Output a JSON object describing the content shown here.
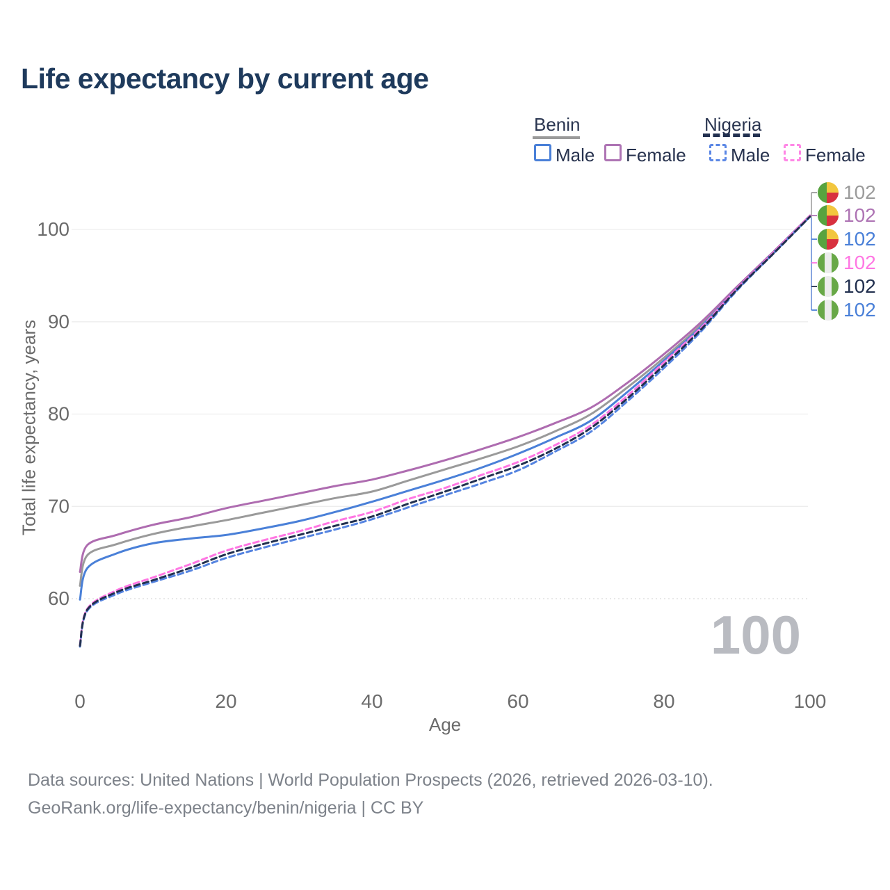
{
  "title": "Life expectancy by current age",
  "legend": {
    "groups": [
      {
        "label": "Benin",
        "line_style": "solid",
        "items": [
          {
            "label": "Male",
            "color": "#4a80d8"
          },
          {
            "label": "Female",
            "color": "#ae74b4"
          }
        ]
      },
      {
        "label": "Nigeria",
        "line_style": "dashed",
        "items": [
          {
            "label": "Male",
            "color": "#5b87e5"
          },
          {
            "label": "Female",
            "color": "#ff87e6"
          }
        ]
      }
    ]
  },
  "chart_data": {
    "type": "line",
    "title": "Life expectancy by current age",
    "xlabel": "Age",
    "ylabel": "Total life expectancy, years",
    "x_ticks": [
      0,
      20,
      40,
      60,
      80,
      100
    ],
    "y_ticks": [
      60,
      70,
      80,
      90,
      100
    ],
    "xlim": [
      0,
      100
    ],
    "ylim": [
      54,
      103
    ],
    "grid": "horizontal",
    "ages": [
      0,
      1,
      5,
      10,
      15,
      20,
      25,
      30,
      35,
      40,
      45,
      50,
      55,
      60,
      65,
      70,
      75,
      80,
      85,
      90,
      95,
      100
    ],
    "series": [
      {
        "name": "Benin average",
        "color": "#9a9a9a",
        "dash": null,
        "values": [
          61.4,
          64.7,
          65.9,
          67.0,
          67.8,
          68.5,
          69.3,
          70.1,
          70.9,
          71.6,
          72.8,
          74.0,
          75.2,
          76.5,
          78.1,
          80.0,
          82.9,
          86.1,
          89.6,
          93.7,
          97.5,
          101.5
        ]
      },
      {
        "name": "Benin female",
        "color": "#ae6cb0",
        "dash": null,
        "values": [
          62.9,
          65.8,
          66.9,
          68.0,
          68.8,
          69.8,
          70.6,
          71.4,
          72.2,
          72.9,
          73.9,
          75.0,
          76.2,
          77.5,
          79.0,
          80.7,
          83.4,
          86.5,
          89.9,
          93.8,
          97.6,
          101.5
        ]
      },
      {
        "name": "Benin male",
        "color": "#4a80d8",
        "dash": null,
        "values": [
          59.9,
          63.3,
          64.9,
          66.0,
          66.5,
          66.9,
          67.6,
          68.4,
          69.4,
          70.5,
          71.7,
          72.9,
          74.2,
          75.7,
          77.4,
          79.3,
          82.4,
          85.8,
          89.4,
          93.6,
          97.5,
          101.4
        ]
      },
      {
        "name": "Nigeria female",
        "color": "#ff77e3",
        "dash": "8 5",
        "values": [
          55.0,
          58.9,
          60.9,
          62.3,
          63.7,
          65.2,
          66.3,
          67.3,
          68.4,
          69.4,
          70.8,
          72.0,
          73.4,
          74.8,
          76.6,
          78.8,
          82.0,
          85.6,
          89.3,
          93.6,
          97.5,
          101.5
        ]
      },
      {
        "name": "Nigeria male",
        "color": "#5584e0",
        "dash": "8 5",
        "values": [
          54.8,
          58.7,
          60.5,
          61.8,
          63.0,
          64.4,
          65.5,
          66.5,
          67.5,
          68.6,
          69.9,
          71.2,
          72.5,
          73.9,
          75.9,
          78.1,
          81.4,
          85.0,
          88.9,
          93.4,
          97.4,
          101.4
        ]
      },
      {
        "name": "Nigeria average",
        "color": "#22304f",
        "dash": "8 5",
        "values": [
          54.9,
          58.8,
          60.7,
          62.0,
          63.3,
          64.8,
          65.9,
          66.9,
          67.9,
          68.9,
          70.3,
          71.6,
          73.0,
          74.4,
          76.2,
          78.5,
          81.7,
          85.3,
          89.1,
          93.5,
          97.4,
          101.4
        ]
      }
    ]
  },
  "endpoint_labels": [
    {
      "series": "Benin average",
      "flag": "benin",
      "value": "102",
      "color": "#9b9b9b"
    },
    {
      "series": "Benin female",
      "flag": "benin",
      "value": "102",
      "color": "#ae74b4"
    },
    {
      "series": "Benin male",
      "flag": "benin",
      "value": "102",
      "color": "#4a80d8"
    },
    {
      "series": "Nigeria female",
      "flag": "nigeria",
      "value": "102",
      "color": "#ff77e3"
    },
    {
      "series": "Nigeria average",
      "flag": "nigeria",
      "value": "102",
      "color": "#22304f"
    },
    {
      "series": "Nigeria male",
      "flag": "nigeria",
      "value": "102",
      "color": "#4a80d8"
    }
  ],
  "hovered_age_watermark": "100",
  "footer": {
    "line1": "Data sources: United Nations | World Population Prospects (2026, retrieved 2026-03-10).",
    "line2": "GeoRank.org/life-expectancy/benin/nigeria | CC BY"
  },
  "colors": {
    "title": "#1e3a5c",
    "axis_text": "#6b6b6b",
    "gridline": "#ededed",
    "gridline_dotted": "#d9d9d9",
    "watermark": "#b9bbc1",
    "footer_text": "#7d828a",
    "connector_top": "#a0a0a0",
    "connector_bottom": "#6a8fd8"
  }
}
